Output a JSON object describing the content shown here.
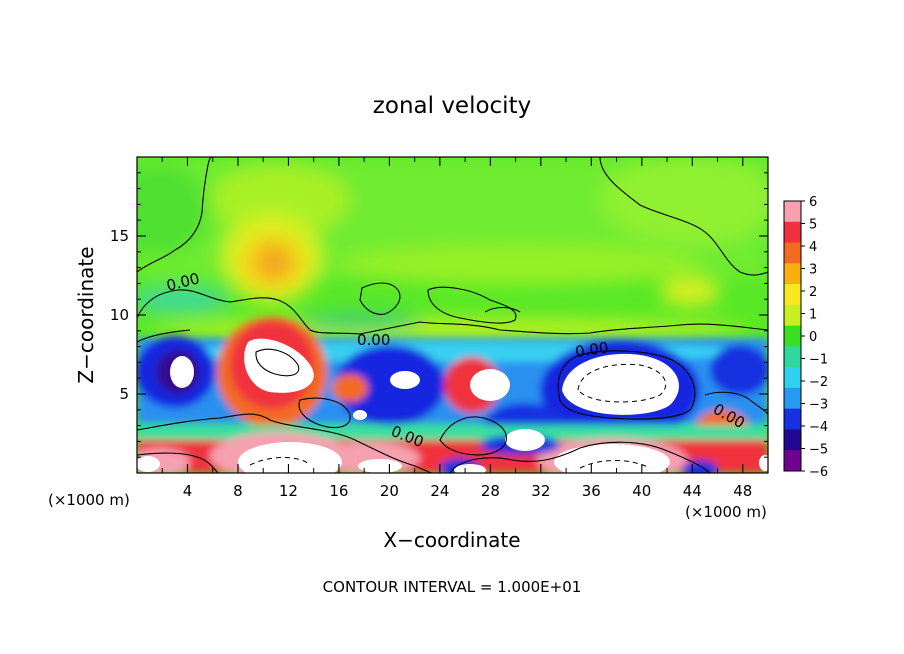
{
  "chart_data": {
    "type": "heatmap",
    "title": "zonal velocity",
    "xlabel": "X−coordinate",
    "ylabel": "Z−coordinate",
    "x_unit": "(×1000 m)",
    "z_unit": "(×1000 m)",
    "xlim": [
      0,
      50
    ],
    "ylim": [
      0,
      20
    ],
    "x_ticks": [
      4,
      8,
      12,
      16,
      20,
      24,
      28,
      32,
      36,
      40,
      44,
      48
    ],
    "y_ticks": [
      5,
      10,
      15
    ],
    "colorbar": {
      "ticks": [
        6,
        5,
        4,
        3,
        2,
        1,
        0,
        -1,
        -2,
        -3,
        -4,
        -5,
        -6
      ],
      "colors": [
        "#f6a0b0",
        "#f0303c",
        "#f46a20",
        "#f8b010",
        "#f8e820",
        "#c8f020",
        "#38e020",
        "#30d8a0",
        "#30d0f0",
        "#2898f0",
        "#1830e0",
        "#200890",
        "#700090"
      ]
    },
    "contour_labels": [
      "0.00",
      "0.00",
      "0.00",
      "0.00",
      "0.00"
    ],
    "footer": "CONTOUR INTERVAL = 1.000E+01"
  }
}
